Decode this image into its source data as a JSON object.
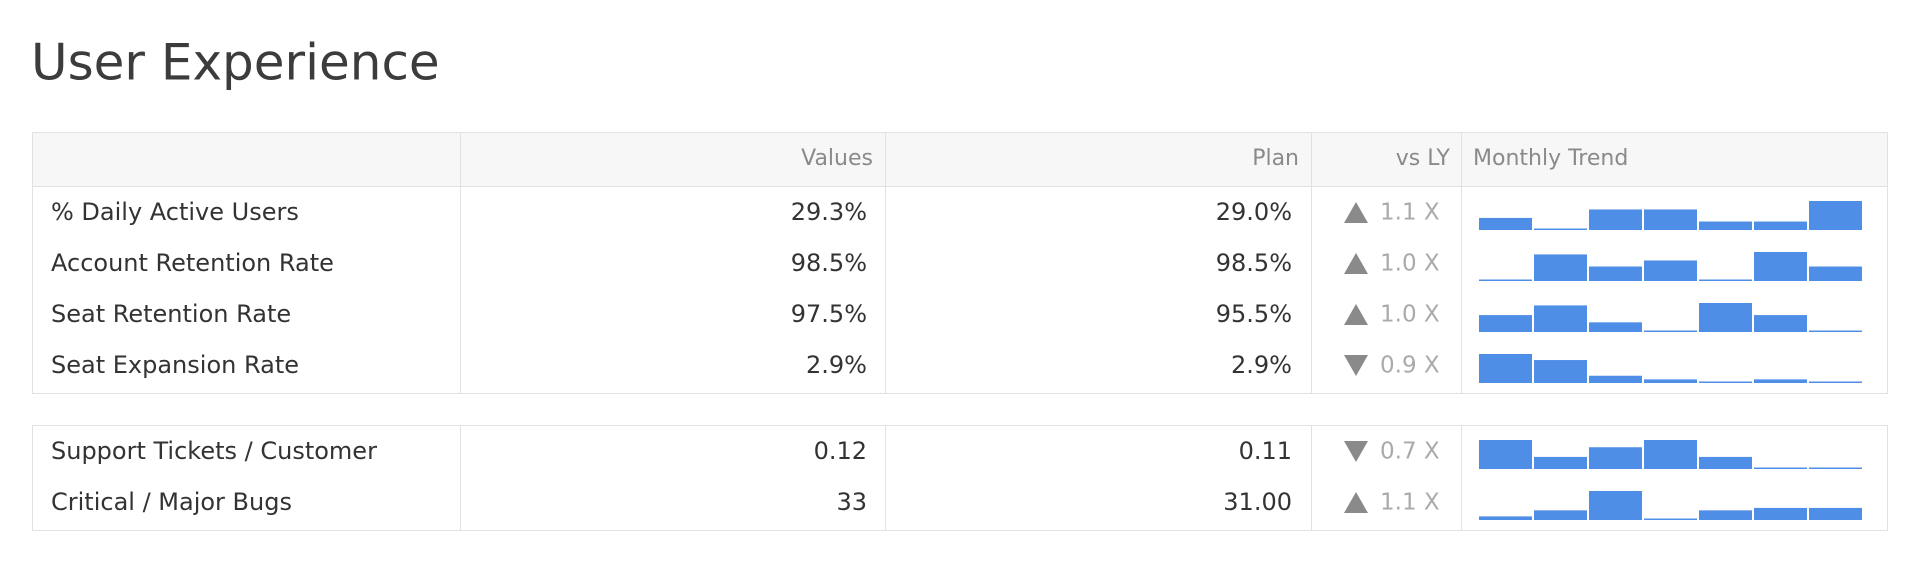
{
  "title": "User Experience",
  "header": {
    "values": "Values",
    "plan": "Plan",
    "vs_ly": "vs LY",
    "trend": "Monthly Trend"
  },
  "trend_color": "#4f8ee6",
  "groups": [
    {
      "rows": [
        {
          "label": "% Daily Active Users",
          "value": "29.3%",
          "plan": "29.0%",
          "direction": "up",
          "vs_ly": "1.1 X",
          "trend": [
            10,
            1,
            17,
            17,
            7,
            7,
            24
          ]
        },
        {
          "label": "Account Retention Rate",
          "value": "98.5%",
          "plan": "98.5%",
          "direction": "up",
          "vs_ly": "1.0 X",
          "trend": [
            1,
            22,
            12,
            17,
            1,
            24,
            12
          ]
        },
        {
          "label": "Seat Retention Rate",
          "value": "97.5%",
          "plan": "95.5%",
          "direction": "up",
          "vs_ly": "1.0 X",
          "trend": [
            14,
            22,
            8,
            1,
            24,
            14,
            1
          ]
        },
        {
          "label": "Seat Expansion Rate",
          "value": "2.9%",
          "plan": "2.9%",
          "direction": "down",
          "vs_ly": "0.9 X",
          "trend": [
            24,
            19,
            6,
            3,
            1,
            3,
            1
          ]
        }
      ]
    },
    {
      "rows": [
        {
          "label": "Support Tickets / Customer",
          "value": "0.12",
          "plan": "0.11",
          "direction": "down",
          "vs_ly": "0.7 X",
          "trend": [
            24,
            10,
            18,
            24,
            10,
            1,
            1
          ]
        },
        {
          "label": "Critical / Major Bugs",
          "value": "33",
          "plan": "31.00",
          "direction": "up",
          "vs_ly": "1.1 X",
          "trend": [
            3,
            8,
            24,
            1,
            8,
            10,
            10
          ]
        }
      ]
    }
  ]
}
